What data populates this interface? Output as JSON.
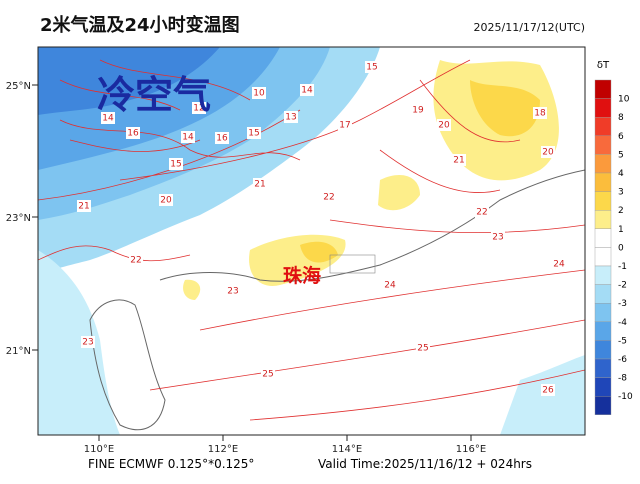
{
  "header": {
    "title": "2米气温及24小时变温图",
    "datetime": "2025/11/17/12(UTC)"
  },
  "map": {
    "annotations": [
      "冷空气",
      "珠海"
    ],
    "lat_labels": [
      "25°N",
      "23°N",
      "21°N"
    ],
    "lon_labels": [
      "110°E",
      "112°E",
      "114°E",
      "116°E"
    ],
    "contour_labels": [
      "15",
      "14",
      "14",
      "16",
      "14",
      "16",
      "15",
      "10",
      "12",
      "13",
      "15",
      "20",
      "21",
      "22",
      "23",
      "24",
      "24",
      "25",
      "25",
      "26",
      "23",
      "19",
      "20",
      "21",
      "22",
      "18",
      "20",
      "17",
      "21",
      "22",
      "23"
    ]
  },
  "colorbar": {
    "title": "δT",
    "labels": [
      "10",
      "8",
      "6",
      "5",
      "4",
      "3",
      "2",
      "1",
      "0",
      "-1",
      "-2",
      "-3",
      "-4",
      "-5",
      "-6",
      "-8",
      "-10"
    ],
    "colors": [
      "#c00000",
      "#e01010",
      "#f03c28",
      "#f86a3c",
      "#fb9a3c",
      "#fbbd3c",
      "#fcd84a",
      "#fdee8a",
      "#ffffff",
      "#ffffff",
      "#c8eefa",
      "#a4dcf5",
      "#7ec4f0",
      "#5aa6e8",
      "#3f86dc",
      "#2f64cc",
      "#1f46b8",
      "#15309c"
    ]
  },
  "footer": {
    "source": "FINE ECMWF 0.125°*0.125°",
    "valid": "Valid Time:2025/11/16/12 + 024hrs"
  }
}
